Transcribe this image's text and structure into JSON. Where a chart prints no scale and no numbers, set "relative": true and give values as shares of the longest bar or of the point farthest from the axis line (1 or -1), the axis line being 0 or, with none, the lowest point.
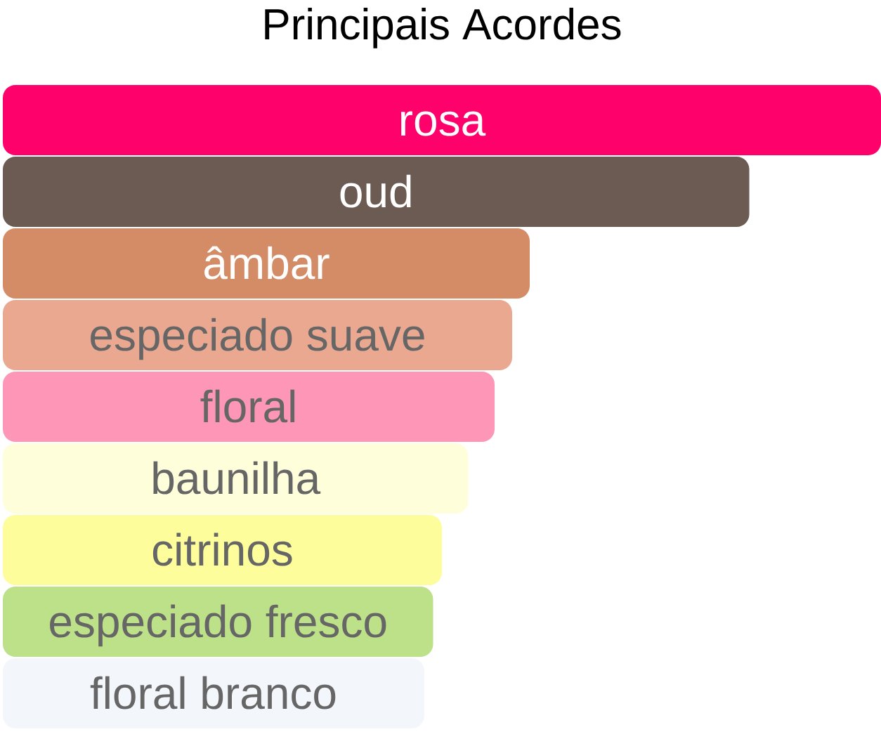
{
  "chart_data": {
    "type": "bar",
    "orientation": "horizontal",
    "relative": true,
    "title": "Principais Acordes",
    "categories": [
      "rosa",
      "oud",
      "âmbar",
      "especiado suave",
      "floral",
      "baunilha",
      "citrinos",
      "especiado fresco",
      "floral branco"
    ],
    "values": [
      1,
      0.85,
      0.6,
      0.58,
      0.56,
      0.53,
      0.5,
      0.49,
      0.48
    ],
    "colors": [
      "#fe016b",
      "#6b5b52",
      "#d38c66",
      "#eba891",
      "#fe96b7",
      "#fefedb",
      "#fdfd9c",
      "#bde189",
      "#f3f7fc"
    ]
  }
}
